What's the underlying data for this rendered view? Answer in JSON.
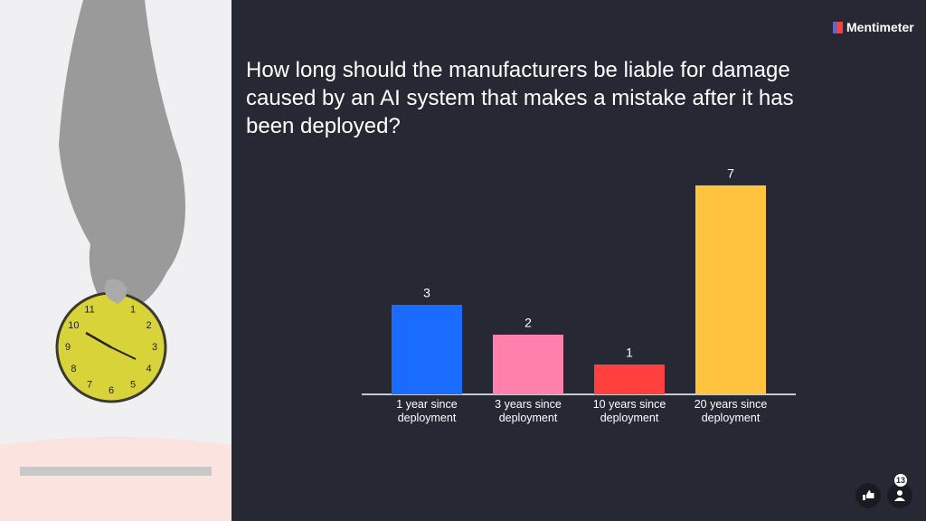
{
  "brand": "Mentimeter",
  "participants": "13",
  "clock_numbers": [
    "1",
    "2",
    "3",
    "4",
    "5",
    "6",
    "7",
    "8",
    "9",
    "10",
    "11"
  ],
  "chart_data": {
    "type": "bar",
    "title": "How long should the manufacturers be liable for damage caused by an AI system that makes a mistake after it has been deployed?",
    "categories": [
      "1 year since deployment",
      "3 years since deployment",
      "10 years since deployment",
      "20 years since deployment"
    ],
    "values": [
      3,
      2,
      1,
      7
    ],
    "colors": [
      "#196cff",
      "#ff80ab",
      "#ff403d",
      "#ffc43d"
    ]
  }
}
